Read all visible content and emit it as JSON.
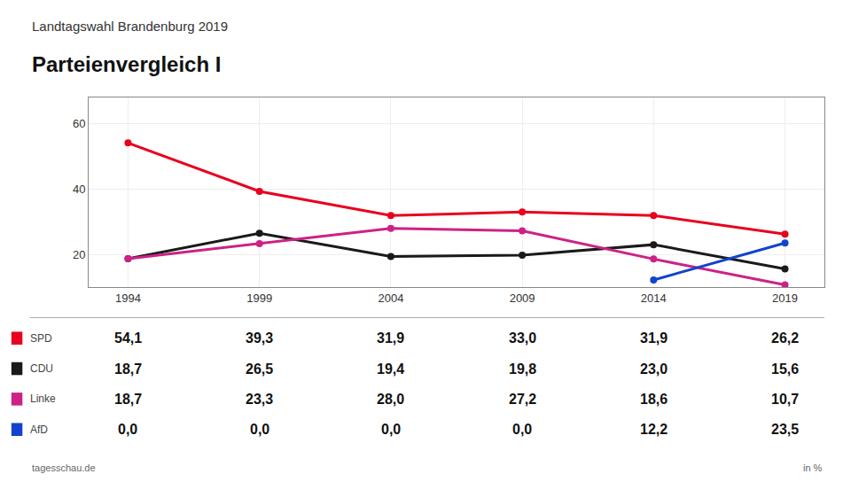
{
  "chart_data": [
    {
      "type": "line",
      "title": "Parteienvergleich I",
      "subtitle": "Landtagswahl Brandenburg 2019",
      "annotations": [
        "tagesschau.de",
        "in %"
      ],
      "categories": [
        "1994",
        "1999",
        "2004",
        "2009",
        "2014",
        "2019"
      ],
      "series": [
        {
          "name": "SPD",
          "color": "#e8001e",
          "values": [
            54.1,
            39.3,
            31.9,
            33.0,
            31.9,
            26.2
          ]
        },
        {
          "name": "CDU",
          "color": "#1a1a1a",
          "values": [
            18.7,
            26.5,
            19.4,
            19.8,
            23.0,
            15.6
          ]
        },
        {
          "name": "Linke",
          "color": "#cc2288",
          "values": [
            18.7,
            23.3,
            28.0,
            27.2,
            18.6,
            10.7
          ]
        },
        {
          "name": "AfD",
          "color": "#1144cc",
          "values": [
            null,
            null,
            null,
            null,
            12.2,
            23.5
          ]
        }
      ],
      "ylim": [
        10,
        68
      ],
      "yticks": [
        20,
        40,
        60
      ],
      "grid": true,
      "marker": "circle"
    },
    {
      "type": "table",
      "series": [
        {
          "name": "SPD",
          "color": "#e8001e",
          "values": [
            54.1,
            39.3,
            31.9,
            33.0,
            31.9,
            26.2
          ],
          "value_labels": [
            "54,1",
            "39,3",
            "31,9",
            "33,0",
            "31,9",
            "26,2"
          ]
        },
        {
          "name": "CDU",
          "color": "#1a1a1a",
          "values": [
            18.7,
            26.5,
            19.4,
            19.8,
            23.0,
            15.6
          ],
          "value_labels": [
            "18,7",
            "26,5",
            "19,4",
            "19,8",
            "23,0",
            "15,6"
          ]
        },
        {
          "name": "Linke",
          "color": "#cc2288",
          "values": [
            18.7,
            23.3,
            28.0,
            27.2,
            18.6,
            10.7
          ],
          "value_labels": [
            "18,7",
            "23,3",
            "28,0",
            "27,2",
            "18,6",
            "10,7"
          ]
        },
        {
          "name": "AfD",
          "color": "#1144cc",
          "values": [
            0.0,
            0.0,
            0.0,
            0.0,
            12.2,
            23.5
          ],
          "value_labels": [
            "0,0",
            "0,0",
            "0,0",
            "0,0",
            "12,2",
            "23,5"
          ]
        }
      ]
    }
  ]
}
